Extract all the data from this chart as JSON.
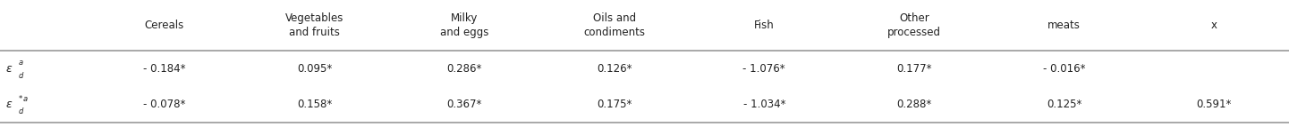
{
  "col_headers": [
    "Cereals",
    "Vegetables\nand fruits",
    "Milky\nand eggs",
    "Oils and\ncondiments",
    "Fish",
    "Other\nprocessed",
    "meats",
    "x"
  ],
  "row1": [
    "- 0.184*",
    "0.095*",
    "0.286*",
    "0.126*",
    "- 1.076*",
    "0.177*",
    "- 0.016*",
    ""
  ],
  "row2": [
    "- 0.078*",
    "0.158*",
    "0.367*",
    "0.175*",
    "- 1.034*",
    "0.288*",
    "0.125*",
    "0.591*"
  ],
  "background_color": "#ffffff",
  "text_color": "#222222",
  "line_color": "#999999",
  "font_size": 8.5,
  "header_font_size": 8.5,
  "fig_width": 14.41,
  "fig_height": 1.43,
  "dpi": 100
}
